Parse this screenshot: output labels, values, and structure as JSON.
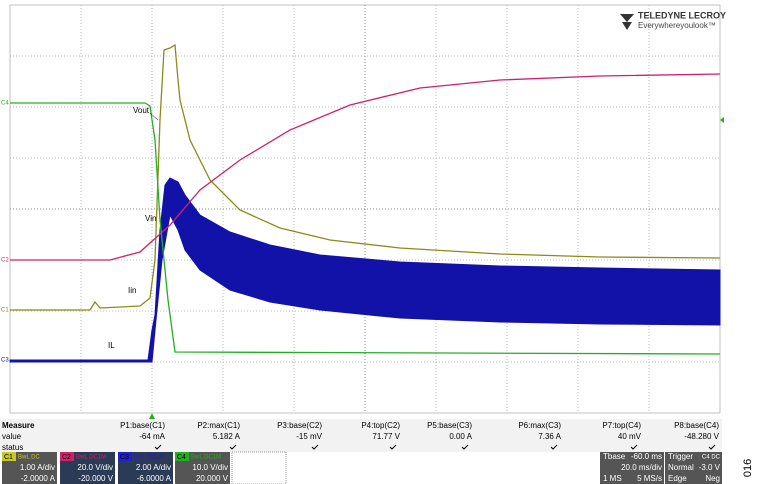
{
  "logo": {
    "brand": "TELEDYNE LECROY",
    "tagline": "Everywhereyoulook™"
  },
  "trace_labels": [
    "Vout",
    "Vin",
    "Iin",
    "IL"
  ],
  "channel_markers": [
    "C4",
    "C2",
    "C1",
    "C3"
  ],
  "measure": {
    "title": "Measure",
    "header": [
      "P1:base(C1)",
      "P2:max(C1)",
      "P3:base(C2)",
      "P4:top(C2)",
      "P5:base(C3)",
      "P6:max(C3)",
      "P7:top(C4)",
      "P8:base(C4)"
    ],
    "value_label": "value",
    "values": [
      "-64 mA",
      "5.182 A",
      "-15 mV",
      "71.77 V",
      "0.00 A",
      "7.36 A",
      "40 mV",
      "-48.280 V"
    ],
    "status_label": "status"
  },
  "channels": [
    {
      "name": "C1",
      "coupling": "BwL DC",
      "scale": "1.00 A/div",
      "offset": "-2.0000 A"
    },
    {
      "name": "C2",
      "coupling": "BwL DC1M",
      "scale": "20.0 V/div",
      "offset": "-20.000 V"
    },
    {
      "name": "C3",
      "coupling": "BwL DC1M",
      "scale": "2.00 A/div",
      "offset": "-6.0000 A"
    },
    {
      "name": "C4",
      "coupling": "BwL DC1M",
      "scale": "10.0 V/div",
      "offset": "20.000 V"
    }
  ],
  "timebase": {
    "label": "Tbase",
    "delay": "-60.0 ms",
    "scale": "20.0 ms/div",
    "points": "1 MS",
    "rate": "5 MS/s"
  },
  "trigger": {
    "label": "Trigger",
    "source": "C4 DC",
    "mode": "Normal",
    "level": "-3.0 V",
    "type": "Edge",
    "slope": "Neg"
  },
  "side_label": "016"
}
